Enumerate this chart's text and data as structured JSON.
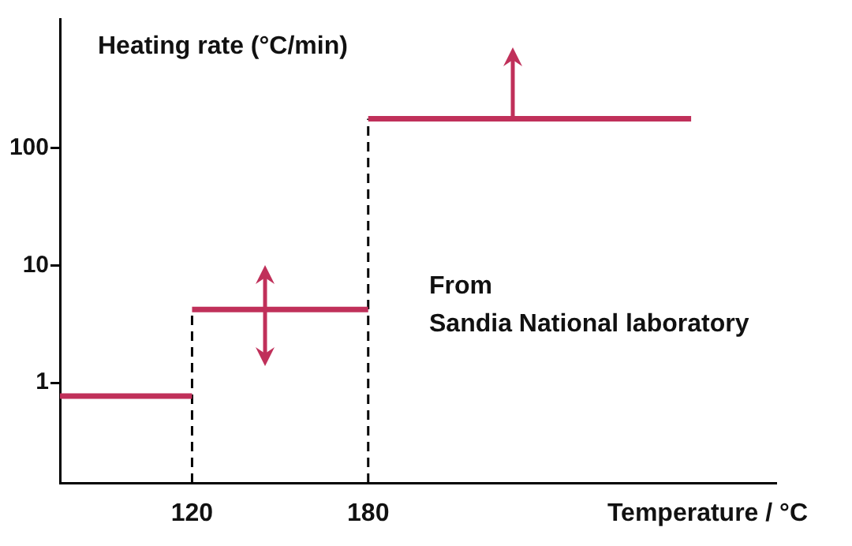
{
  "chart_data": {
    "type": "line",
    "xlabel": "Temperature / °C",
    "ylabel": "Heating rate (°C/min)",
    "xlim": [
      75,
      319
    ],
    "xticks": [
      120,
      180
    ],
    "ylim": [
      0.14,
      1260
    ],
    "yticks": [
      1,
      10,
      100
    ],
    "log": "y",
    "grid": false,
    "legend": false,
    "marker": "none",
    "line_style": "solid",
    "series": [
      {
        "color": "#c0305a",
        "x": [
          75,
          120
        ],
        "values": [
          0.77,
          0.77
        ]
      },
      {
        "color": "#c0305a",
        "x": [
          120,
          180
        ],
        "values": [
          4.2,
          4.2
        ]
      },
      {
        "color": "#c0305a",
        "x": [
          180,
          290
        ],
        "values": [
          178,
          178
        ]
      }
    ],
    "ref_lines": [
      {
        "axis": "x",
        "value": 120,
        "color": "#000000",
        "line_style": "dashed"
      },
      {
        "axis": "x",
        "value": 180,
        "color": "#000000",
        "line_style": "dashed"
      }
    ],
    "annotations": [
      "From\nSandia National laboratory"
    ]
  }
}
